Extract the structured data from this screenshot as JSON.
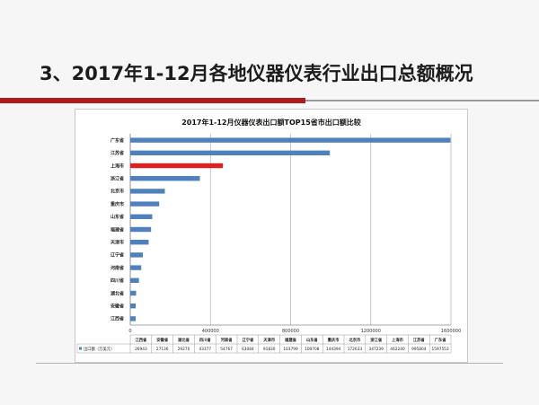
{
  "slide": {
    "title": "3、2017年1-12月各地仪器仪表行业出口总额概况"
  },
  "colors": {
    "bar_default": "#4f81bd",
    "bar_highlight": "#e02020",
    "accent_red": "#b01a1a"
  },
  "chart_data": {
    "type": "bar",
    "orientation": "horizontal",
    "title": "2017年1-12月仪器仪表出口额TOP15省市出口额比较",
    "categories": [
      "广东省",
      "江苏省",
      "上海市",
      "浙江省",
      "北京市",
      "重庆市",
      "山东省",
      "福建省",
      "天津市",
      "辽宁省",
      "河南省",
      "四川省",
      "湖北省",
      "安徽省",
      "江西省"
    ],
    "highlight_category": "上海市",
    "series": [
      {
        "name": "出口额（万美元）",
        "values": [
          1597553,
          995804,
          462240,
          347239,
          172633,
          144394,
          109708,
          103799,
          91830,
          63084,
          54767,
          43377,
          29270,
          27136,
          26943
        ]
      }
    ],
    "xlim": [
      0,
      1600000
    ],
    "x_ticks": [
      0,
      400000,
      800000,
      1200000,
      1600000
    ],
    "grid": "vertical",
    "table": {
      "row_label": "出口额（万美元）",
      "columns": [
        "江西省",
        "安徽省",
        "湖北省",
        "四川省",
        "河南省",
        "辽宁省",
        "天津市",
        "福建省",
        "山东省",
        "重庆市",
        "北京市",
        "浙江省",
        "上海市",
        "江苏省",
        "广东省"
      ],
      "values": [
        "26943",
        "27136",
        "29270",
        "43377",
        "54767",
        "63084",
        "91830",
        "103799",
        "109708",
        "144394",
        "172633",
        "347239",
        "462240",
        "995804",
        "1597553"
      ]
    }
  }
}
